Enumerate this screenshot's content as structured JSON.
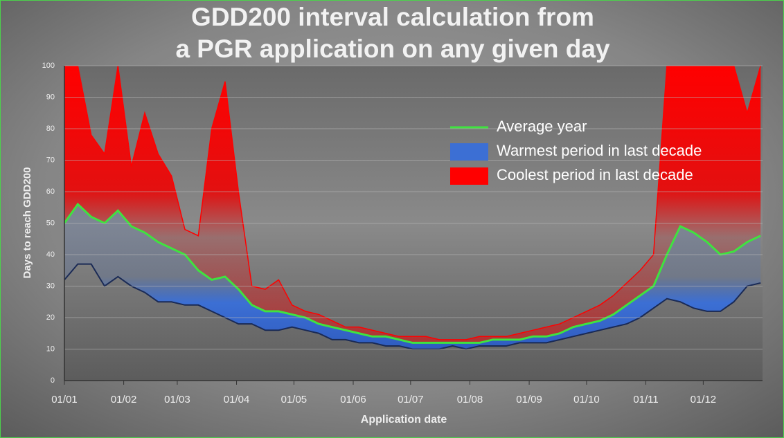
{
  "chart_data": {
    "type": "area-band",
    "title": [
      "GDD200 interval calculation from",
      "a PGR application on any given day"
    ],
    "x_label": "Application date",
    "y_label": "Days to reach GDD200",
    "x": [
      0,
      7,
      14,
      21,
      28,
      35,
      42,
      49,
      56,
      63,
      70,
      77,
      84,
      91,
      98,
      105,
      112,
      119,
      126,
      133,
      140,
      147,
      154,
      161,
      168,
      175,
      182,
      189,
      196,
      203,
      210,
      217,
      224,
      231,
      238,
      245,
      252,
      259,
      266,
      273,
      280,
      287,
      294,
      301,
      308,
      315,
      322,
      329,
      336,
      343,
      350,
      357,
      364
    ],
    "series": [
      {
        "name": "Average year",
        "color": "#3fe33f",
        "values": [
          50,
          56,
          52,
          50,
          54,
          49,
          47,
          44,
          42,
          40,
          35,
          32,
          33,
          29,
          24,
          22,
          22,
          21,
          20,
          18,
          17,
          16,
          15,
          14,
          14,
          13,
          12,
          12,
          12,
          12,
          12,
          12,
          13,
          13,
          13,
          14,
          14,
          15,
          17,
          18,
          19,
          21,
          24,
          27,
          30,
          40,
          49,
          47,
          44,
          40,
          41,
          44,
          46
        ]
      },
      {
        "name": "Warmest period in last decade",
        "color": "#3c6fd4",
        "values": [
          32,
          37,
          37,
          30,
          33,
          30,
          28,
          25,
          25,
          24,
          24,
          22,
          20,
          18,
          18,
          16,
          16,
          17,
          16,
          15,
          13,
          13,
          12,
          12,
          11,
          11,
          10,
          10,
          10,
          11,
          10,
          11,
          11,
          11,
          12,
          12,
          12,
          13,
          14,
          15,
          16,
          17,
          18,
          20,
          23,
          26,
          25,
          23,
          22,
          22,
          25,
          30,
          31
        ]
      },
      {
        "name": "Coolest period in last decade",
        "color": "#ff0000",
        "values": [
          100,
          100,
          78,
          72,
          100,
          68,
          85,
          72,
          65,
          48,
          46,
          80,
          95,
          60,
          30,
          29,
          32,
          24,
          22,
          21,
          19,
          17,
          17,
          16,
          15,
          14,
          14,
          14,
          13,
          13,
          13,
          14,
          14,
          14,
          15,
          16,
          17,
          18,
          20,
          22,
          24,
          27,
          31,
          35,
          40,
          100,
          100,
          100,
          100,
          100,
          100,
          85,
          100
        ]
      }
    ],
    "xlim": [
      0,
      365
    ],
    "xticks": [
      {
        "value": 0,
        "label": "01/01"
      },
      {
        "value": 31,
        "label": "01/02"
      },
      {
        "value": 59,
        "label": "01/03"
      },
      {
        "value": 90,
        "label": "01/04"
      },
      {
        "value": 120,
        "label": "01/05"
      },
      {
        "value": 151,
        "label": "01/06"
      },
      {
        "value": 181,
        "label": "01/07"
      },
      {
        "value": 212,
        "label": "01/08"
      },
      {
        "value": 243,
        "label": "01/09"
      },
      {
        "value": 273,
        "label": "01/10"
      },
      {
        "value": 304,
        "label": "01/11"
      },
      {
        "value": 334,
        "label": "01/12"
      }
    ],
    "ylim": [
      0,
      100
    ],
    "yticks": [
      0,
      10,
      20,
      30,
      40,
      50,
      60,
      70,
      80,
      90,
      100
    ],
    "grid": true,
    "legend": "upper-right"
  }
}
